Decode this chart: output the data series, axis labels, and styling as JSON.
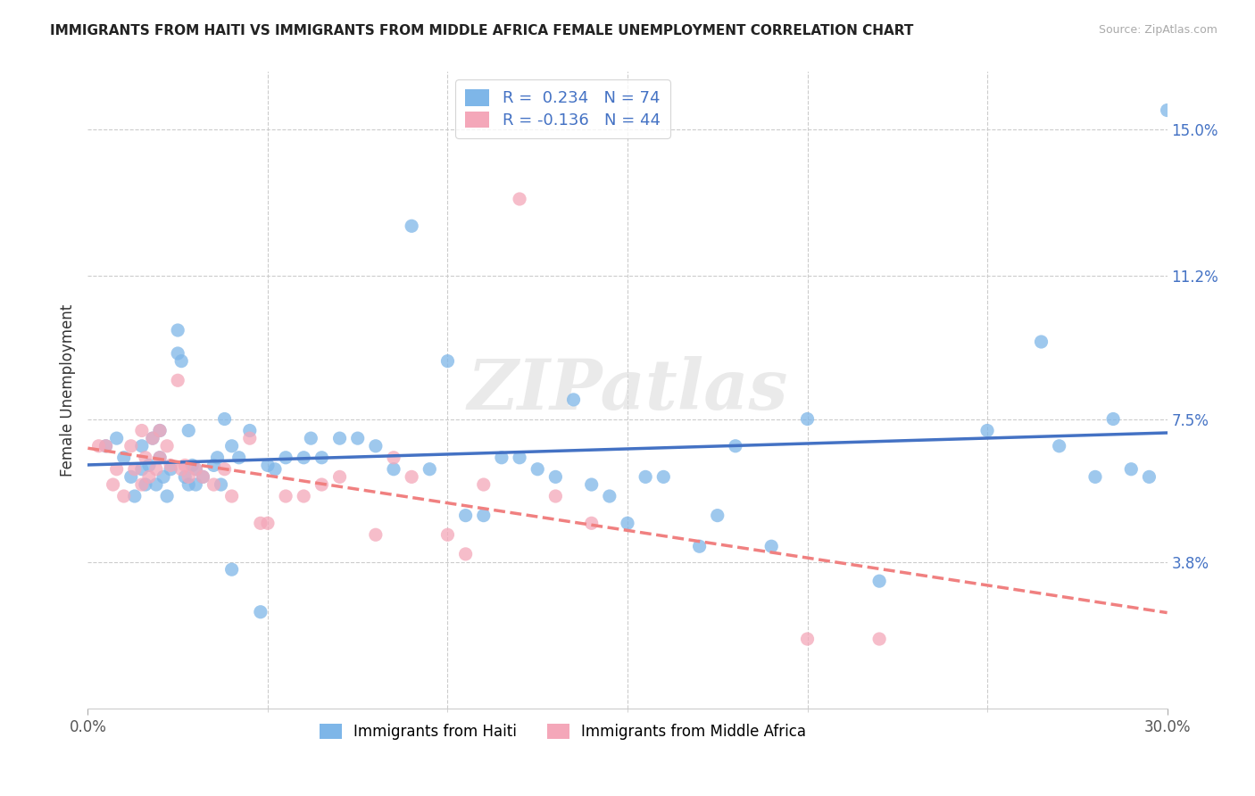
{
  "title": "IMMIGRANTS FROM HAITI VS IMMIGRANTS FROM MIDDLE AFRICA FEMALE UNEMPLOYMENT CORRELATION CHART",
  "source": "Source: ZipAtlas.com",
  "ylabel": "Female Unemployment",
  "xlim": [
    0.0,
    0.3
  ],
  "ylim": [
    0.0,
    0.165
  ],
  "ytick_positions": [
    0.038,
    0.075,
    0.112,
    0.15
  ],
  "ytick_labels": [
    "3.8%",
    "7.5%",
    "11.2%",
    "15.0%"
  ],
  "haiti_color": "#7EB6E8",
  "middle_africa_color": "#F4A7B9",
  "haiti_line_color": "#4472C4",
  "middle_africa_line_color": "#F08080",
  "haiti_R": 0.234,
  "haiti_N": 74,
  "middle_africa_R": -0.136,
  "middle_africa_N": 44,
  "watermark": "ZIPatlas",
  "haiti_scatter_x": [
    0.005,
    0.008,
    0.01,
    0.012,
    0.013,
    0.015,
    0.015,
    0.016,
    0.017,
    0.018,
    0.019,
    0.02,
    0.02,
    0.021,
    0.022,
    0.023,
    0.025,
    0.025,
    0.026,
    0.027,
    0.028,
    0.028,
    0.029,
    0.03,
    0.03,
    0.032,
    0.035,
    0.036,
    0.037,
    0.038,
    0.04,
    0.04,
    0.042,
    0.045,
    0.048,
    0.05,
    0.052,
    0.055,
    0.06,
    0.062,
    0.065,
    0.07,
    0.075,
    0.08,
    0.085,
    0.09,
    0.095,
    0.1,
    0.105,
    0.11,
    0.115,
    0.12,
    0.125,
    0.13,
    0.135,
    0.14,
    0.145,
    0.15,
    0.155,
    0.16,
    0.17,
    0.175,
    0.18,
    0.19,
    0.2,
    0.22,
    0.25,
    0.265,
    0.27,
    0.28,
    0.285,
    0.29,
    0.295,
    0.3
  ],
  "haiti_scatter_y": [
    0.068,
    0.07,
    0.065,
    0.06,
    0.055,
    0.062,
    0.068,
    0.058,
    0.063,
    0.07,
    0.058,
    0.065,
    0.072,
    0.06,
    0.055,
    0.062,
    0.098,
    0.092,
    0.09,
    0.06,
    0.058,
    0.072,
    0.063,
    0.062,
    0.058,
    0.06,
    0.063,
    0.065,
    0.058,
    0.075,
    0.036,
    0.068,
    0.065,
    0.072,
    0.025,
    0.063,
    0.062,
    0.065,
    0.065,
    0.07,
    0.065,
    0.07,
    0.07,
    0.068,
    0.062,
    0.125,
    0.062,
    0.09,
    0.05,
    0.05,
    0.065,
    0.065,
    0.062,
    0.06,
    0.08,
    0.058,
    0.055,
    0.048,
    0.06,
    0.06,
    0.042,
    0.05,
    0.068,
    0.042,
    0.075,
    0.033,
    0.072,
    0.095,
    0.068,
    0.06,
    0.075,
    0.062,
    0.06,
    0.155
  ],
  "middle_africa_scatter_x": [
    0.003,
    0.005,
    0.007,
    0.008,
    0.01,
    0.012,
    0.013,
    0.015,
    0.015,
    0.016,
    0.017,
    0.018,
    0.019,
    0.02,
    0.02,
    0.022,
    0.023,
    0.025,
    0.026,
    0.027,
    0.028,
    0.03,
    0.032,
    0.035,
    0.038,
    0.04,
    0.045,
    0.048,
    0.05,
    0.055,
    0.06,
    0.065,
    0.07,
    0.08,
    0.085,
    0.09,
    0.1,
    0.105,
    0.11,
    0.12,
    0.13,
    0.14,
    0.2,
    0.22
  ],
  "middle_africa_scatter_y": [
    0.068,
    0.068,
    0.058,
    0.062,
    0.055,
    0.068,
    0.062,
    0.072,
    0.058,
    0.065,
    0.06,
    0.07,
    0.062,
    0.065,
    0.072,
    0.068,
    0.063,
    0.085,
    0.062,
    0.063,
    0.06,
    0.062,
    0.06,
    0.058,
    0.062,
    0.055,
    0.07,
    0.048,
    0.048,
    0.055,
    0.055,
    0.058,
    0.06,
    0.045,
    0.065,
    0.06,
    0.045,
    0.04,
    0.058,
    0.132,
    0.055,
    0.048,
    0.018,
    0.018
  ],
  "legend1_label1": "R =  0.234   N = 74",
  "legend1_label2": "R = -0.136   N = 44",
  "legend2_label1": "Immigrants from Haiti",
  "legend2_label2": "Immigrants from Middle Africa"
}
